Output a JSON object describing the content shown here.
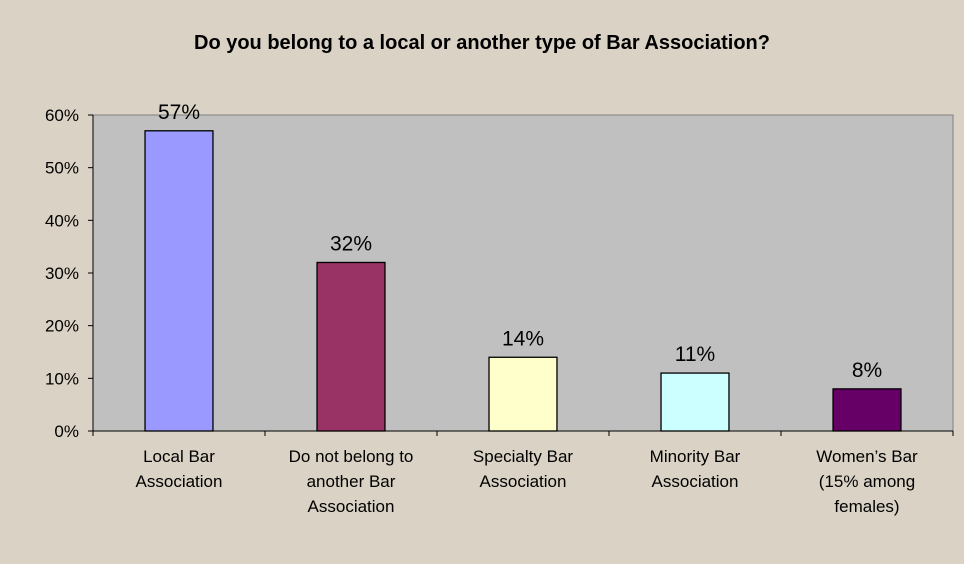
{
  "chart_data": {
    "type": "bar",
    "title": "Do you belong to a local or another type of Bar Association?",
    "categories": [
      [
        "Local Bar",
        "Association"
      ],
      [
        "Do not belong to",
        "another Bar",
        "Association"
      ],
      [
        "Specialty Bar",
        "Association"
      ],
      [
        "Minority Bar",
        "Association"
      ],
      [
        "Women’s Bar",
        "(15% among",
        "females)"
      ]
    ],
    "values": [
      57,
      32,
      14,
      11,
      8
    ],
    "data_labels": [
      "57%",
      "32%",
      "14%",
      "11%",
      "8%"
    ],
    "bar_colors": [
      "#9999ff",
      "#993366",
      "#ffffcc",
      "#ccffff",
      "#660066"
    ],
    "ylim": [
      0,
      60
    ],
    "y_ticks": [
      0,
      10,
      20,
      30,
      40,
      50,
      60
    ],
    "y_tick_labels": [
      "0%",
      "10%",
      "20%",
      "30%",
      "40%",
      "50%",
      "60%"
    ],
    "xlabel": "",
    "ylabel": "",
    "grid": false,
    "legend": "none",
    "plot_background": "#c0c0c0",
    "page_background": "#d9d2c5"
  }
}
